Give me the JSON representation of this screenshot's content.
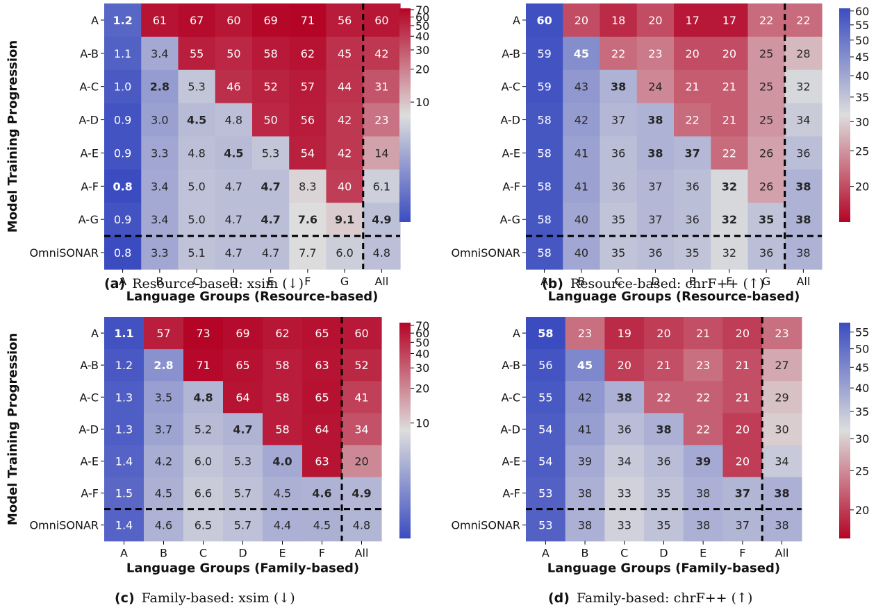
{
  "colors": {
    "low": "#3b4cc0",
    "mid": "#dddddd",
    "high": "#b40426"
  },
  "chart_data": [
    {
      "type": "heatmap",
      "id": "a",
      "caption_tag": "(a)",
      "caption_text": "Resource-based: xsim (↓)",
      "xlabel": "Language Groups (Resource-based)",
      "ylabel": "Model Training Progression",
      "x": [
        "A",
        "B",
        "C",
        "D",
        "E",
        "F",
        "G",
        "All"
      ],
      "y": [
        "A",
        "A-B",
        "A-C",
        "A-D",
        "A-E",
        "A-F",
        "A-G",
        "OmniSONAR"
      ],
      "cells": [
        [
          "1.2",
          "61",
          "67",
          "60",
          "69",
          "71",
          "56",
          "60"
        ],
        [
          "1.1",
          "3.4",
          "55",
          "50",
          "58",
          "62",
          "45",
          "42"
        ],
        [
          "1.0",
          "2.8",
          "5.3",
          "46",
          "52",
          "57",
          "44",
          "31"
        ],
        [
          "0.9",
          "3.0",
          "4.5",
          "4.8",
          "50",
          "56",
          "42",
          "23"
        ],
        [
          "0.9",
          "3.3",
          "4.8",
          "4.5",
          "5.3",
          "54",
          "42",
          "14"
        ],
        [
          "0.8",
          "3.4",
          "5.0",
          "4.7",
          "4.7",
          "8.3",
          "40",
          "6.1"
        ],
        [
          "0.9",
          "3.4",
          "5.0",
          "4.7",
          "4.7",
          "7.6",
          "9.1",
          "4.9"
        ],
        [
          "0.8",
          "3.3",
          "5.1",
          "4.7",
          "4.7",
          "7.7",
          "6.0",
          "4.8"
        ]
      ],
      "bold": [
        [
          0,
          0
        ],
        [
          2,
          1
        ],
        [
          3,
          2
        ],
        [
          4,
          3
        ],
        [
          5,
          0
        ],
        [
          5,
          4
        ],
        [
          6,
          4
        ],
        [
          6,
          5
        ],
        [
          6,
          6
        ],
        [
          6,
          7
        ]
      ],
      "colorbar": {
        "scale": "log",
        "min": 0.8,
        "max": 72,
        "ticks": [
          10,
          20,
          30,
          40,
          50,
          60,
          70
        ]
      },
      "reverse_colors": false
    },
    {
      "type": "heatmap",
      "id": "b",
      "caption_tag": "(b)",
      "caption_text": "Resource-based: chrF++ (↑)",
      "xlabel": "Language Groups (Resource-based)",
      "ylabel": "",
      "x": [
        "A",
        "B",
        "C",
        "D",
        "E",
        "F",
        "G",
        "All"
      ],
      "y": [
        "A",
        "A-B",
        "A-C",
        "A-D",
        "A-E",
        "A-F",
        "A-G",
        "OmniSONAR"
      ],
      "cells": [
        [
          "60",
          "20",
          "18",
          "20",
          "17",
          "17",
          "22",
          "22"
        ],
        [
          "59",
          "45",
          "22",
          "23",
          "20",
          "20",
          "25",
          "28"
        ],
        [
          "59",
          "43",
          "38",
          "24",
          "21",
          "21",
          "25",
          "32"
        ],
        [
          "58",
          "42",
          "37",
          "38",
          "22",
          "21",
          "25",
          "34"
        ],
        [
          "58",
          "41",
          "36",
          "38",
          "37",
          "22",
          "26",
          "36"
        ],
        [
          "58",
          "41",
          "36",
          "37",
          "36",
          "32",
          "26",
          "38"
        ],
        [
          "58",
          "40",
          "35",
          "37",
          "36",
          "32",
          "35",
          "38"
        ],
        [
          "58",
          "40",
          "35",
          "36",
          "35",
          "32",
          "36",
          "38"
        ]
      ],
      "bold": [
        [
          0,
          0
        ],
        [
          1,
          1
        ],
        [
          2,
          2
        ],
        [
          3,
          3
        ],
        [
          4,
          3
        ],
        [
          4,
          4
        ],
        [
          5,
          5
        ],
        [
          5,
          7
        ],
        [
          6,
          5
        ],
        [
          6,
          6
        ],
        [
          6,
          7
        ]
      ],
      "colorbar": {
        "scale": "log",
        "min": 16,
        "max": 61,
        "ticks": [
          20,
          25,
          30,
          35,
          40,
          45,
          50,
          55,
          60
        ]
      },
      "reverse_colors": true
    },
    {
      "type": "heatmap",
      "id": "c",
      "caption_tag": "(c)",
      "caption_text": "Family-based: xsim (↓)",
      "xlabel": "Language Groups (Family-based)",
      "ylabel": "Model Training Progression",
      "x": [
        "A",
        "B",
        "C",
        "D",
        "E",
        "F",
        "All"
      ],
      "y": [
        "A",
        "A-B",
        "A-C",
        "A-D",
        "A-E",
        "A-F",
        "OmniSONAR"
      ],
      "cells": [
        [
          "1.1",
          "57",
          "73",
          "69",
          "62",
          "65",
          "60"
        ],
        [
          "1.2",
          "2.8",
          "71",
          "65",
          "58",
          "63",
          "52"
        ],
        [
          "1.3",
          "3.5",
          "4.8",
          "64",
          "58",
          "65",
          "41"
        ],
        [
          "1.3",
          "3.7",
          "5.2",
          "4.7",
          "58",
          "64",
          "34"
        ],
        [
          "1.4",
          "4.2",
          "6.0",
          "5.3",
          "4.0",
          "63",
          "20"
        ],
        [
          "1.5",
          "4.5",
          "6.6",
          "5.7",
          "4.5",
          "4.6",
          "4.9"
        ],
        [
          "1.4",
          "4.6",
          "6.5",
          "5.7",
          "4.4",
          "4.5",
          "4.8"
        ]
      ],
      "bold": [
        [
          0,
          0
        ],
        [
          1,
          1
        ],
        [
          2,
          2
        ],
        [
          3,
          3
        ],
        [
          4,
          4
        ],
        [
          5,
          5
        ],
        [
          5,
          6
        ]
      ],
      "colorbar": {
        "scale": "log",
        "min": 1.0,
        "max": 74,
        "ticks": [
          10,
          20,
          30,
          40,
          50,
          60,
          70
        ]
      },
      "reverse_colors": false
    },
    {
      "type": "heatmap",
      "id": "d",
      "caption_tag": "(d)",
      "caption_text": "Family-based: chrF++ (↑)",
      "xlabel": "Language Groups (Family-based)",
      "ylabel": "",
      "x": [
        "A",
        "B",
        "C",
        "D",
        "E",
        "F",
        "All"
      ],
      "y": [
        "A",
        "A-B",
        "A-C",
        "A-D",
        "A-E",
        "A-F",
        "OmniSONAR"
      ],
      "cells": [
        [
          "58",
          "23",
          "19",
          "20",
          "21",
          "20",
          "23"
        ],
        [
          "56",
          "45",
          "20",
          "21",
          "23",
          "21",
          "27"
        ],
        [
          "55",
          "42",
          "38",
          "22",
          "22",
          "21",
          "29"
        ],
        [
          "54",
          "41",
          "36",
          "38",
          "22",
          "20",
          "30"
        ],
        [
          "54",
          "39",
          "34",
          "36",
          "39",
          "20",
          "34"
        ],
        [
          "53",
          "38",
          "33",
          "35",
          "38",
          "37",
          "38"
        ],
        [
          "53",
          "38",
          "33",
          "35",
          "38",
          "37",
          "38"
        ]
      ],
      "bold": [
        [
          0,
          0
        ],
        [
          1,
          1
        ],
        [
          2,
          2
        ],
        [
          3,
          3
        ],
        [
          4,
          4
        ],
        [
          5,
          5
        ],
        [
          5,
          6
        ]
      ],
      "colorbar": {
        "scale": "log",
        "min": 17,
        "max": 58,
        "ticks": [
          20,
          25,
          30,
          35,
          40,
          45,
          50,
          55
        ]
      },
      "reverse_colors": true
    }
  ]
}
